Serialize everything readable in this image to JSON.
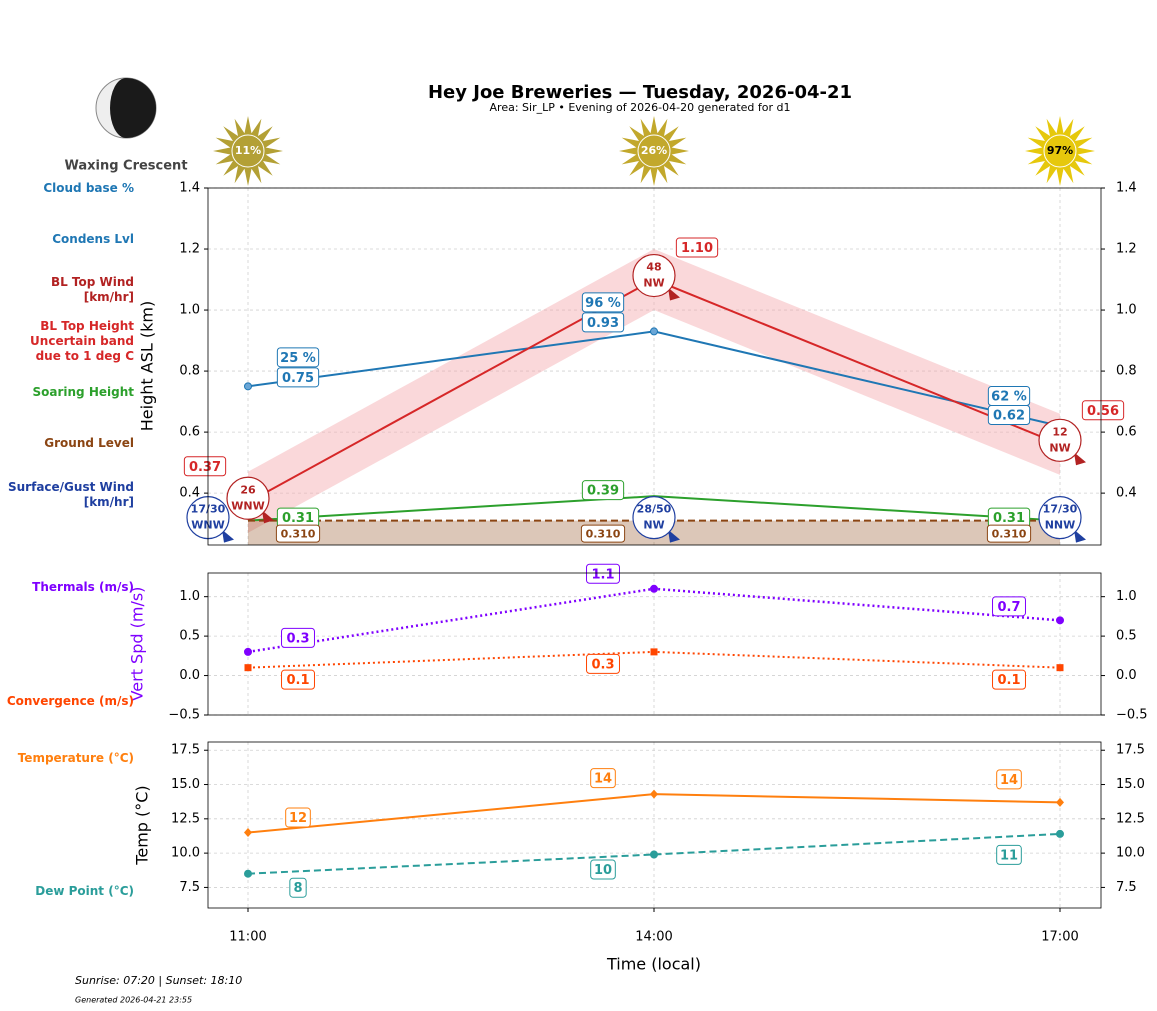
{
  "header": {
    "title": "Hey Joe Breweries — Tuesday, 2026-04-21",
    "subtitle": "Area: Sir_LP • Evening of 2026-04-20 generated for d1",
    "moon_phase": "Waxing Crescent",
    "sun": {
      "values": [
        11,
        26,
        97
      ],
      "value_labels": [
        "11%",
        "26%",
        "97%"
      ],
      "colors": [
        "#b3a035",
        "#c2a82c",
        "#e6c80c"
      ]
    }
  },
  "chart_data": [
    {
      "type": "line",
      "ylabel": "Height ASL (km)",
      "categories": [
        "11:00",
        "14:00",
        "17:00"
      ],
      "ylim": [
        0.23,
        1.4
      ],
      "yticks": [
        0.4,
        0.6,
        0.8,
        {
          "value": 1,
          "label": "1.0"
        },
        1.2,
        1.4
      ],
      "grid": true,
      "series": [
        {
          "name": "Cloud base %",
          "color": "#1f77b4",
          "values": [
            25,
            96,
            62
          ],
          "value_labels": [
            "25 %",
            "96 %",
            "62 %"
          ],
          "line": "none",
          "marker": "none"
        },
        {
          "name": "Condens Lvl",
          "color": "#1f77b4",
          "values": [
            0.75,
            0.93,
            0.62
          ],
          "line": "solid",
          "marker": "circle"
        },
        {
          "name": "BL Top Wind [km/hr]",
          "color": "#b22222",
          "values": [
            26,
            48,
            12
          ],
          "directions": [
            "WNW",
            "NW",
            "NW"
          ],
          "line": "none",
          "marker": "wind"
        },
        {
          "name": "BL Top Height",
          "band_name": "Uncertain band due to 1 deg C",
          "color": "#d62728",
          "band_color": "#f4a9ad",
          "values": [
            0.37,
            1.1,
            0.56
          ],
          "value_labels": [
            "0.37",
            "1.10",
            "0.56"
          ],
          "band_low": [
            0.27,
            1.0,
            0.46
          ],
          "band_high": [
            0.47,
            1.2,
            0.66
          ],
          "line": "solid",
          "marker": "none"
        },
        {
          "name": "Soaring Height",
          "color": "#2ca02c",
          "values": [
            0.31,
            0.39,
            0.31
          ],
          "line": "solid",
          "marker": "none"
        },
        {
          "name": "Ground Level",
          "color": "#8b4513",
          "values": [
            0.31,
            0.31,
            0.31
          ],
          "value_labels": [
            "0.310",
            "0.310",
            "0.310"
          ],
          "line": "dashed",
          "marker": "none"
        },
        {
          "name": "Surface/Gust Wind [km/hr]",
          "color": "#1f3fa0",
          "values": [
            17,
            28,
            17
          ],
          "gust": [
            30,
            50,
            30
          ],
          "value_labels": [
            "17/30",
            "28/50",
            "17/30"
          ],
          "directions": [
            "WNW",
            "NW",
            "NNW"
          ],
          "line": "none",
          "marker": "wind"
        }
      ]
    },
    {
      "type": "line",
      "ylabel": "Vert Spd (m/s)",
      "ylabel_color": "#7f00ff",
      "categories": [
        "11:00",
        "14:00",
        "17:00"
      ],
      "ylim": [
        -0.5,
        1.3
      ],
      "yticks": [
        {
          "value": -0.5,
          "label": "−0.5"
        },
        {
          "value": 0,
          "label": "0.0"
        },
        0.5,
        {
          "value": 1,
          "label": "1.0"
        }
      ],
      "grid": true,
      "series": [
        {
          "name": "Thermals (m/s)",
          "color": "#7f00ff",
          "values": [
            0.3,
            1.1,
            0.7
          ],
          "line": "dotted",
          "marker": "circle"
        },
        {
          "name": "Convergence (m/s)",
          "color": "#ff4500",
          "values": [
            0.1,
            0.3,
            0.1
          ],
          "line": "dotted",
          "marker": "square"
        }
      ]
    },
    {
      "type": "line",
      "ylabel": "Temp (°C)",
      "categories": [
        "11:00",
        "14:00",
        "17:00"
      ],
      "ylim": [
        6,
        18.1
      ],
      "yticks": [
        7.5,
        {
          "value": 10,
          "label": "10.0"
        },
        12.5,
        {
          "value": 15,
          "label": "15.0"
        },
        17.5
      ],
      "grid": true,
      "series": [
        {
          "name": "Temperature (°C)",
          "color": "#ff7f0e",
          "values": [
            11.5,
            14.3,
            13.7
          ],
          "value_labels": [
            "12",
            "14",
            "14"
          ],
          "line": "solid",
          "marker": "diamond"
        },
        {
          "name": "Dew Point (°C)",
          "color": "#2a9d9a",
          "values": [
            8.5,
            9.9,
            11.4
          ],
          "value_labels": [
            "8",
            "10",
            "11"
          ],
          "line": "dashed",
          "marker": "circle"
        }
      ]
    }
  ],
  "xlabel": "Time (local)",
  "footer": {
    "sun_times": "Sunrise: 07:20 | Sunset: 18:10",
    "generated": "Generated 2026-04-21 23:55"
  }
}
